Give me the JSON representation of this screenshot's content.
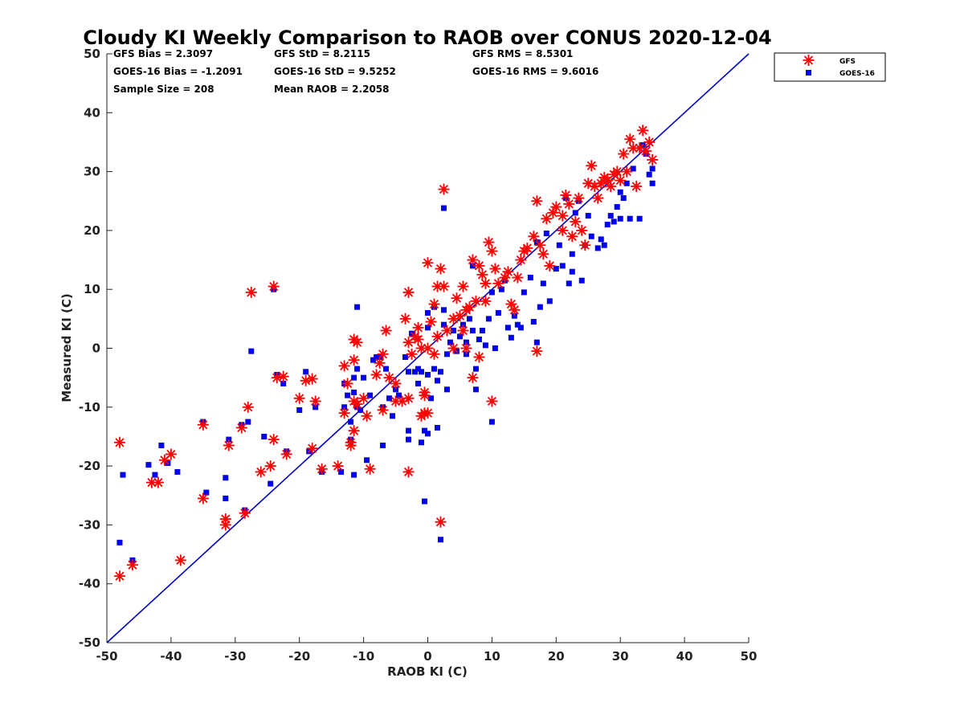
{
  "colors": {
    "gfs": "#ff0000",
    "goes": "#0000ee",
    "one_to_one": "#0000cc",
    "axis": "#222222"
  },
  "chart_data": {
    "type": "scatter",
    "title": "Cloudy KI Weekly Comparison to RAOB over CONUS 2020-12-04",
    "xlabel": "RAOB KI (C)",
    "ylabel": "Measured KI (C)",
    "xlim": [
      -50,
      50
    ],
    "ylim": [
      -50,
      50
    ],
    "xticks": [
      "-50",
      "-40",
      "-30",
      "-20",
      "-10",
      "0",
      "10",
      "20",
      "30",
      "40",
      "50"
    ],
    "yticks": [
      "50",
      "40",
      "30",
      "20",
      "10",
      "0",
      "-10",
      "-20",
      "-30",
      "-40",
      "-50"
    ],
    "grid": false,
    "legend_position": "top-right outside",
    "reference_line": "1:1",
    "stats": [
      [
        "GFS Bias = 2.3097",
        "GFS StD = 8.2115",
        "GFS RMS = 8.5301"
      ],
      [
        "GOES-16 Bias = -1.2091",
        "GOES-16 StD = 9.5252",
        "GOES-16 RMS = 9.6016"
      ],
      [
        "Sample Size = 208",
        "Mean RAOB = 2.2058"
      ]
    ],
    "series": [
      {
        "name": "GFS",
        "marker": "asterisk",
        "points": [
          [
            -48,
            -16
          ],
          [
            -48,
            -38.7
          ],
          [
            -46,
            -36.8
          ],
          [
            -43,
            -22.8
          ],
          [
            -42,
            -22.8
          ],
          [
            -41,
            -19
          ],
          [
            -40,
            -18
          ],
          [
            -38.5,
            -36
          ],
          [
            -35,
            -13
          ],
          [
            -35,
            -25.5
          ],
          [
            -31.5,
            -29
          ],
          [
            -31.5,
            -30
          ],
          [
            -31,
            -16.5
          ],
          [
            -29,
            -13.5
          ],
          [
            -28.5,
            -28
          ],
          [
            -28,
            -10
          ],
          [
            -27.5,
            9.5
          ],
          [
            -26,
            -21
          ],
          [
            -24.5,
            -20
          ],
          [
            -24,
            -15.5
          ],
          [
            -24,
            10.5
          ],
          [
            -23.5,
            -5
          ],
          [
            -22.5,
            -4.8
          ],
          [
            -22,
            -18
          ],
          [
            -20,
            -8.5
          ],
          [
            -19,
            -5.5
          ],
          [
            -18,
            -5.2
          ],
          [
            -18,
            -17
          ],
          [
            -17.5,
            -9
          ],
          [
            -16.5,
            -20.5
          ],
          [
            -14,
            -20
          ],
          [
            -13,
            -11
          ],
          [
            -13,
            -3
          ],
          [
            -12.5,
            -6
          ],
          [
            -12,
            -16
          ],
          [
            -12,
            -16.5
          ],
          [
            -11.5,
            -14
          ],
          [
            -11.5,
            -9
          ],
          [
            -11.5,
            -2
          ],
          [
            -11.5,
            1.5
          ],
          [
            -11,
            -9.5
          ],
          [
            -11,
            1
          ],
          [
            -10,
            -8.5
          ],
          [
            -9.5,
            -11.5
          ],
          [
            -9,
            -20.5
          ],
          [
            -8,
            -4.5
          ],
          [
            -7.5,
            -2.5
          ],
          [
            -7,
            -10.5
          ],
          [
            -7,
            -1
          ],
          [
            -6.5,
            3
          ],
          [
            -6,
            -5
          ],
          [
            -5,
            -6
          ],
          [
            -5,
            -9
          ],
          [
            -4,
            -9
          ],
          [
            -3.5,
            5
          ],
          [
            -3,
            -8.5
          ],
          [
            -3,
            1
          ],
          [
            -3,
            9.5
          ],
          [
            -3,
            -21
          ],
          [
            -2.5,
            -1
          ],
          [
            -2,
            2
          ],
          [
            -1.5,
            1.5
          ],
          [
            -1.5,
            3.5
          ],
          [
            -1,
            0
          ],
          [
            -1,
            -11.5
          ],
          [
            -0.5,
            -11
          ],
          [
            -0.5,
            -7.5
          ],
          [
            -0.5,
            -8
          ],
          [
            0,
            -11
          ],
          [
            0,
            0
          ],
          [
            0,
            14.5
          ],
          [
            0.5,
            4.5
          ],
          [
            1,
            -1
          ],
          [
            1,
            7.5
          ],
          [
            1.5,
            10.5
          ],
          [
            1.5,
            2
          ],
          [
            2,
            -29.5
          ],
          [
            2,
            13.5
          ],
          [
            2.5,
            10.5
          ],
          [
            2.5,
            27
          ],
          [
            3,
            3
          ],
          [
            4,
            5
          ],
          [
            4,
            0
          ],
          [
            4.5,
            8.5
          ],
          [
            5,
            5.5
          ],
          [
            5.5,
            10.5
          ],
          [
            5.5,
            3
          ],
          [
            6,
            6.5
          ],
          [
            6,
            0
          ],
          [
            6.5,
            7
          ],
          [
            7,
            15
          ],
          [
            7,
            -5
          ],
          [
            7.5,
            8
          ],
          [
            8,
            -1.5
          ],
          [
            8,
            14
          ],
          [
            8.5,
            12.5
          ],
          [
            9,
            8
          ],
          [
            9,
            11
          ],
          [
            9.5,
            18
          ],
          [
            10,
            16.5
          ],
          [
            10,
            -9
          ],
          [
            10.5,
            13.5
          ],
          [
            11,
            11
          ],
          [
            12,
            12
          ],
          [
            12.5,
            13
          ],
          [
            13,
            7.5
          ],
          [
            13.5,
            6.5
          ],
          [
            14,
            12
          ],
          [
            14.5,
            15
          ],
          [
            15,
            16.5
          ],
          [
            15.5,
            17
          ],
          [
            16.5,
            19
          ],
          [
            17,
            -0.5
          ],
          [
            17,
            25
          ],
          [
            17.5,
            17.5
          ],
          [
            18,
            16
          ],
          [
            18.5,
            22
          ],
          [
            19,
            14
          ],
          [
            19.5,
            23
          ],
          [
            20,
            24
          ],
          [
            21,
            20
          ],
          [
            21,
            22.5
          ],
          [
            21.5,
            26
          ],
          [
            22,
            24.5
          ],
          [
            22.5,
            19
          ],
          [
            23,
            21.5
          ],
          [
            23.5,
            25.5
          ],
          [
            24,
            20
          ],
          [
            24.5,
            17.5
          ],
          [
            25,
            28
          ],
          [
            25.5,
            31
          ],
          [
            26,
            27.5
          ],
          [
            26.5,
            25.5
          ],
          [
            27,
            28
          ],
          [
            27.5,
            29
          ],
          [
            28,
            28.5
          ],
          [
            28.5,
            27.5
          ],
          [
            29,
            29.5
          ],
          [
            29.5,
            30
          ],
          [
            30,
            28.5
          ],
          [
            30.5,
            33
          ],
          [
            31,
            30
          ],
          [
            31.5,
            35.5
          ],
          [
            32,
            34
          ],
          [
            32.5,
            27.5
          ],
          [
            33,
            34
          ],
          [
            33.5,
            37
          ],
          [
            34,
            33.5
          ],
          [
            34.5,
            35
          ],
          [
            35,
            32
          ]
        ]
      },
      {
        "name": "GOES-16",
        "marker": "square",
        "points": [
          [
            -48,
            -33
          ],
          [
            -47.5,
            -21.5
          ],
          [
            -46,
            -36
          ],
          [
            -43.5,
            -19.8
          ],
          [
            -42.5,
            -21.5
          ],
          [
            -41.5,
            -16.5
          ],
          [
            -40.5,
            -19.5
          ],
          [
            -39,
            -21
          ],
          [
            -35,
            -12.5
          ],
          [
            -34.5,
            -24.5
          ],
          [
            -31.5,
            -22
          ],
          [
            -31.5,
            -25.5
          ],
          [
            -31,
            -15.5
          ],
          [
            -29,
            -13
          ],
          [
            -28.5,
            -27.5
          ],
          [
            -28,
            -12.5
          ],
          [
            -27.5,
            -0.5
          ],
          [
            -25.5,
            -15
          ],
          [
            -24.5,
            -23
          ],
          [
            -24,
            10
          ],
          [
            -23.5,
            -4.5
          ],
          [
            -22.5,
            -6
          ],
          [
            -22,
            -17.5
          ],
          [
            -20,
            -10.5
          ],
          [
            -19,
            -4
          ],
          [
            -18.5,
            -17.5
          ],
          [
            -17.5,
            -10
          ],
          [
            -16.5,
            -21
          ],
          [
            -13.5,
            -21
          ],
          [
            -13,
            -10
          ],
          [
            -13,
            -6
          ],
          [
            -12.5,
            -8
          ],
          [
            -12,
            -12.5
          ],
          [
            -12,
            -15.5
          ],
          [
            -11.5,
            -21.5
          ],
          [
            -11.5,
            -7.5
          ],
          [
            -11.5,
            -5
          ],
          [
            -11,
            -3.5
          ],
          [
            -11,
            7
          ],
          [
            -11,
            -10
          ],
          [
            -10.5,
            -10.5
          ],
          [
            -10,
            -5
          ],
          [
            -9.5,
            -19
          ],
          [
            -9,
            -8
          ],
          [
            -8.5,
            -2
          ],
          [
            -8,
            -1.5
          ],
          [
            -7.5,
            -1.5
          ],
          [
            -7,
            -16.5
          ],
          [
            -7,
            -10
          ],
          [
            -6.5,
            -3.5
          ],
          [
            -6,
            -8.5
          ],
          [
            -5.5,
            -11.5
          ],
          [
            -5,
            -7
          ],
          [
            -4.5,
            -8
          ],
          [
            -3.5,
            -1.5
          ],
          [
            -3,
            -14
          ],
          [
            -3,
            -15.5
          ],
          [
            -3,
            -4
          ],
          [
            -2.5,
            2.5
          ],
          [
            -2,
            -4
          ],
          [
            -1.5,
            -3.5
          ],
          [
            -1.5,
            -6
          ],
          [
            -1,
            -4
          ],
          [
            -1,
            -16
          ],
          [
            -0.5,
            -14
          ],
          [
            -0.5,
            -26
          ],
          [
            0,
            -14.5
          ],
          [
            0,
            -4.5
          ],
          [
            0,
            3.5
          ],
          [
            0,
            6
          ],
          [
            0.5,
            -8.5
          ],
          [
            1,
            -3.5
          ],
          [
            1,
            7
          ],
          [
            1.5,
            -5.5
          ],
          [
            1.5,
            -13.5
          ],
          [
            2,
            -4
          ],
          [
            2,
            -32.5
          ],
          [
            2.5,
            4
          ],
          [
            2.5,
            6.5
          ],
          [
            2.5,
            23.8
          ],
          [
            3,
            -7
          ],
          [
            3,
            -1
          ],
          [
            3.5,
            1
          ],
          [
            4,
            3
          ],
          [
            4.5,
            -0.5
          ],
          [
            5,
            2
          ],
          [
            5.5,
            4
          ],
          [
            6,
            1
          ],
          [
            6,
            -1
          ],
          [
            6.5,
            5
          ],
          [
            7,
            3
          ],
          [
            7,
            14
          ],
          [
            7.5,
            -3.5
          ],
          [
            7.5,
            -7
          ],
          [
            8,
            1.5
          ],
          [
            8.5,
            3
          ],
          [
            9,
            0.5
          ],
          [
            9.5,
            5
          ],
          [
            10,
            9.5
          ],
          [
            10,
            -12.5
          ],
          [
            10.5,
            0
          ],
          [
            11,
            6
          ],
          [
            11.5,
            10
          ],
          [
            12,
            11.5
          ],
          [
            12.5,
            3.5
          ],
          [
            13,
            1.8
          ],
          [
            13.5,
            5.5
          ],
          [
            14,
            4
          ],
          [
            14.5,
            3.5
          ],
          [
            15,
            9.5
          ],
          [
            16,
            12
          ],
          [
            16.5,
            4.5
          ],
          [
            17,
            1
          ],
          [
            17,
            18
          ],
          [
            17.5,
            7
          ],
          [
            18,
            11
          ],
          [
            18.5,
            19.5
          ],
          [
            19,
            8
          ],
          [
            20,
            13.5
          ],
          [
            20.5,
            17.5
          ],
          [
            21,
            14
          ],
          [
            21.5,
            25.5
          ],
          [
            22,
            11
          ],
          [
            22.5,
            13
          ],
          [
            22.5,
            16
          ],
          [
            23,
            23
          ],
          [
            23.5,
            25
          ],
          [
            24,
            11.5
          ],
          [
            24.5,
            17.5
          ],
          [
            25,
            22.5
          ],
          [
            25.5,
            19
          ],
          [
            26.5,
            17
          ],
          [
            27,
            18.5
          ],
          [
            27.5,
            17.5
          ],
          [
            28,
            21
          ],
          [
            28.5,
            22.5
          ],
          [
            29,
            21.5
          ],
          [
            29.5,
            24
          ],
          [
            30,
            26.5
          ],
          [
            30,
            22
          ],
          [
            30.5,
            25.5
          ],
          [
            31,
            28
          ],
          [
            31.5,
            22
          ],
          [
            32,
            30.5
          ],
          [
            33,
            22
          ],
          [
            33.5,
            34.5
          ],
          [
            34,
            33
          ],
          [
            34.5,
            29.5
          ],
          [
            35,
            28
          ],
          [
            35,
            30.5
          ]
        ]
      }
    ]
  }
}
